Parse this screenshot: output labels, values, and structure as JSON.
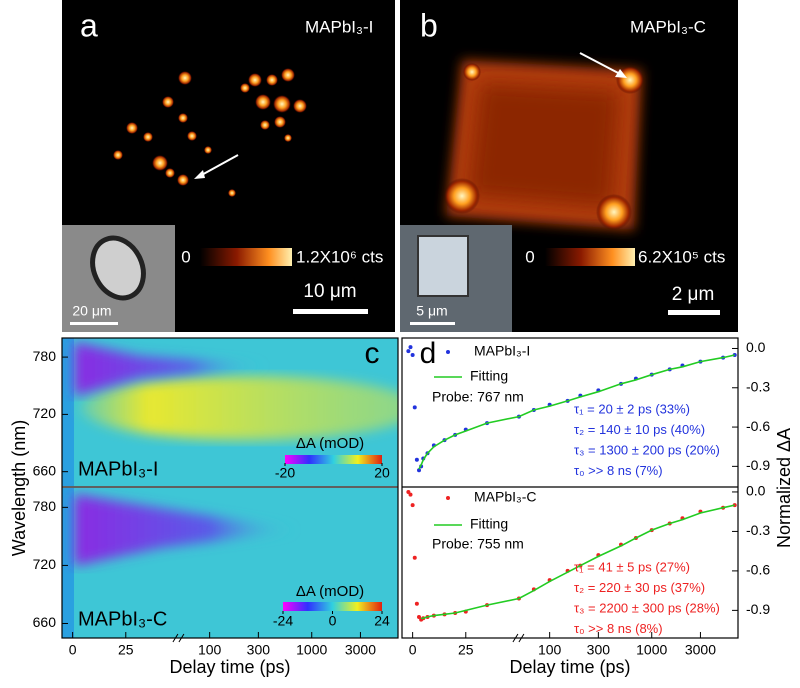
{
  "panel_a": {
    "label": "a",
    "sample": "MAPbI₃-I",
    "colorbar_labels": [
      "0",
      "1.2X10⁶ cts"
    ],
    "scale_bar": "10 μm",
    "inset_scale_bar": "20 μm"
  },
  "panel_b": {
    "label": "b",
    "sample": "MAPbI₃-C",
    "colorbar_labels": [
      "0",
      "6.2X10⁵ cts"
    ],
    "scale_bar": "2 μm",
    "inset_scale_bar": "5 μm"
  },
  "panel_c": {
    "type": "heatmap",
    "label": "c",
    "xlabel": "Delay time (ps)",
    "ylabel": "Wavelength (nm)",
    "xlim": [
      -5,
      7000
    ],
    "x_break": 50,
    "xticks": [
      0,
      25,
      100,
      300,
      1000,
      3000
    ],
    "ylim": [
      645,
      800
    ],
    "yticks": [
      660,
      720,
      780
    ],
    "plots": [
      {
        "sample": "MAPbI₃-I",
        "colorbar_title": "ΔA (mOD)",
        "colorbar_lim": [
          -20,
          20
        ],
        "colorbar_ticks": [
          -20,
          20
        ]
      },
      {
        "sample": "MAPbI₃-C",
        "colorbar_title": "ΔA (mOD)",
        "colorbar_lim": [
          -24,
          24
        ],
        "colorbar_ticks": [
          -24,
          0,
          24
        ]
      }
    ]
  },
  "panel_d": {
    "type": "scatter",
    "label": "d",
    "xlabel": "Delay time (ps)",
    "ylabel": "Normalized ΔA",
    "xlim": [
      -5,
      7000
    ],
    "x_break": 50,
    "xticks": [
      0,
      25,
      100,
      300,
      1000,
      3000
    ],
    "yticks": [
      {
        "value": 0,
        "label": "0.0"
      },
      -0.3,
      -0.6,
      -0.9
    ],
    "x": [
      -2,
      -1,
      0,
      1,
      2,
      3,
      4,
      5,
      7,
      10,
      15,
      20,
      25,
      35,
      50,
      70,
      100,
      150,
      200,
      300,
      500,
      700,
      1000,
      1500,
      2000,
      3000,
      5000,
      6500
    ],
    "plots": [
      {
        "name": "MAPbI₃-I",
        "color": "#2233dd",
        "fit_name": "Fitting",
        "fit_color": "#22cc22",
        "probe": "Probe: 767 nm",
        "ylim": [
          -1.05,
          0.08
        ],
        "values": [
          -0.02,
          0.01,
          -0.05,
          -0.45,
          -0.85,
          -0.93,
          -0.9,
          -0.84,
          -0.8,
          -0.74,
          -0.7,
          -0.66,
          -0.62,
          -0.57,
          -0.52,
          -0.47,
          -0.43,
          -0.4,
          -0.36,
          -0.32,
          -0.27,
          -0.23,
          -0.2,
          -0.16,
          -0.13,
          -0.1,
          -0.07,
          -0.05
        ],
        "fit": [
          null,
          null,
          null,
          null,
          null,
          -0.92,
          -0.89,
          -0.85,
          -0.8,
          -0.75,
          -0.7,
          -0.66,
          -0.63,
          -0.57,
          -0.52,
          -0.47,
          -0.44,
          -0.4,
          -0.37,
          -0.33,
          -0.27,
          -0.24,
          -0.2,
          -0.16,
          -0.14,
          -0.1,
          -0.07,
          -0.05
        ],
        "annotations": [
          "τ₁ = 20 ± 2 ps (33%)",
          "τ₂ = 140 ± 10 ps (40%)",
          "τ₃ = 1300 ± 200 ps (20%)",
          "τ₀ >> 8 ns (7%)"
        ]
      },
      {
        "name": "MAPbI₃-C",
        "color": "#ee2222",
        "fit_name": "Fitting",
        "fit_color": "#22cc22",
        "probe": "Probe: 755 nm",
        "ylim": [
          -1.11,
          0.03
        ],
        "values": [
          0.0,
          -0.02,
          -0.1,
          -0.5,
          -0.85,
          -0.95,
          -0.97,
          -0.96,
          -0.95,
          -0.94,
          -0.93,
          -0.92,
          -0.91,
          -0.86,
          -0.81,
          -0.74,
          -0.67,
          -0.6,
          -0.56,
          -0.48,
          -0.4,
          -0.35,
          -0.29,
          -0.24,
          -0.2,
          -0.15,
          -0.12,
          -0.1
        ],
        "fit": [
          null,
          null,
          null,
          null,
          null,
          null,
          -0.96,
          -0.96,
          -0.95,
          -0.94,
          -0.93,
          -0.92,
          -0.9,
          -0.86,
          -0.81,
          -0.75,
          -0.68,
          -0.61,
          -0.56,
          -0.49,
          -0.41,
          -0.35,
          -0.29,
          -0.24,
          -0.21,
          -0.16,
          -0.12,
          -0.1
        ],
        "annotations": [
          "τ₁ = 41 ± 5 ps (27%)",
          "τ₂ = 220 ± 30 ps (37%)",
          "τ₃ = 2200 ± 300 ps (28%)",
          "τ₀ >> 8 ns (8%)"
        ]
      }
    ]
  }
}
